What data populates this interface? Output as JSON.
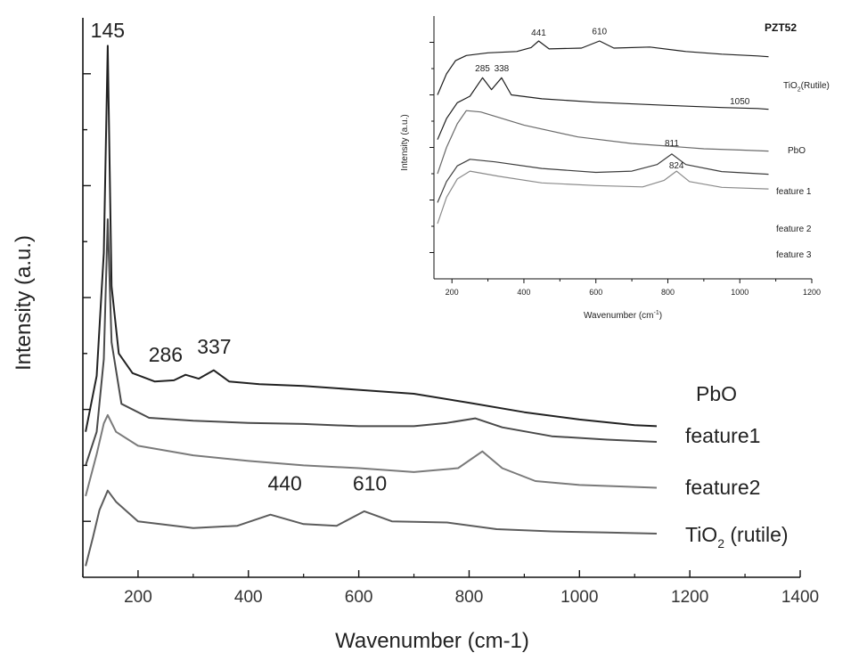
{
  "chart_data": [
    {
      "type": "line",
      "title": "",
      "xlabel": "Wavenumber (cm-1)",
      "ylabel": "Intensity (a.u.)",
      "xlim": [
        100,
        1400
      ],
      "ylim": [
        0,
        10
      ],
      "x_ticks": [
        200,
        400,
        600,
        800,
        1000,
        1200,
        1400
      ],
      "x_tick_labels": [
        "200",
        "400",
        "600",
        "800",
        "1000",
        "1200",
        "1400"
      ],
      "y_tick_labels_shown": false,
      "grid": false,
      "series_labels_placement": "right of curves",
      "series": [
        {
          "name": "PbO",
          "label_main": "PbO",
          "label_sub": "",
          "label_tail": "",
          "color": "#222222",
          "points": [
            [
              105,
              2.6
            ],
            [
              125,
              3.6
            ],
            [
              138,
              5.8
            ],
            [
              145,
              9.5
            ],
            [
              152,
              5.2
            ],
            [
              165,
              4.0
            ],
            [
              190,
              3.65
            ],
            [
              230,
              3.5
            ],
            [
              265,
              3.52
            ],
            [
              286,
              3.62
            ],
            [
              310,
              3.55
            ],
            [
              337,
              3.7
            ],
            [
              365,
              3.5
            ],
            [
              420,
              3.45
            ],
            [
              500,
              3.42
            ],
            [
              600,
              3.35
            ],
            [
              700,
              3.28
            ],
            [
              800,
              3.12
            ],
            [
              900,
              2.95
            ],
            [
              1000,
              2.82
            ],
            [
              1100,
              2.72
            ],
            [
              1140,
              2.7
            ]
          ]
        },
        {
          "name": "feature1",
          "label_main": "feature1",
          "label_sub": "",
          "label_tail": "",
          "color": "#4a4a4a",
          "points": [
            [
              105,
              2.0
            ],
            [
              125,
              2.6
            ],
            [
              138,
              3.9
            ],
            [
              145,
              6.4
            ],
            [
              152,
              4.2
            ],
            [
              170,
              3.1
            ],
            [
              220,
              2.85
            ],
            [
              300,
              2.8
            ],
            [
              400,
              2.76
            ],
            [
              500,
              2.74
            ],
            [
              600,
              2.7
            ],
            [
              700,
              2.7
            ],
            [
              760,
              2.76
            ],
            [
              811,
              2.84
            ],
            [
              860,
              2.68
            ],
            [
              950,
              2.52
            ],
            [
              1050,
              2.46
            ],
            [
              1140,
              2.42
            ]
          ]
        },
        {
          "name": "feature2",
          "label_main": "feature2",
          "label_sub": "",
          "label_tail": "",
          "color": "#7a7a7a",
          "points": [
            [
              105,
              1.45
            ],
            [
              125,
              2.2
            ],
            [
              138,
              2.75
            ],
            [
              145,
              2.9
            ],
            [
              160,
              2.6
            ],
            [
              200,
              2.35
            ],
            [
              300,
              2.18
            ],
            [
              400,
              2.08
            ],
            [
              500,
              2.0
            ],
            [
              600,
              1.95
            ],
            [
              700,
              1.88
            ],
            [
              780,
              1.95
            ],
            [
              824,
              2.25
            ],
            [
              860,
              1.95
            ],
            [
              920,
              1.72
            ],
            [
              1000,
              1.65
            ],
            [
              1140,
              1.6
            ]
          ]
        },
        {
          "name": "TiO2 (rutile)",
          "label_main": "TiO",
          "label_sub": "2",
          "label_tail": " (rutile)",
          "color": "#5c5c5c",
          "points": [
            [
              105,
              0.2
            ],
            [
              118,
              0.7
            ],
            [
              130,
              1.2
            ],
            [
              145,
              1.55
            ],
            [
              160,
              1.35
            ],
            [
              200,
              1.0
            ],
            [
              300,
              0.88
            ],
            [
              380,
              0.92
            ],
            [
              440,
              1.12
            ],
            [
              500,
              0.95
            ],
            [
              560,
              0.92
            ],
            [
              610,
              1.18
            ],
            [
              660,
              1.0
            ],
            [
              760,
              0.98
            ],
            [
              850,
              0.86
            ],
            [
              950,
              0.82
            ],
            [
              1050,
              0.8
            ],
            [
              1140,
              0.78
            ]
          ]
        }
      ],
      "peak_labels": [
        {
          "text": "145",
          "x": 145,
          "y": 9.65
        },
        {
          "text": "286",
          "x": 250,
          "y": 3.85
        },
        {
          "text": "337",
          "x": 338,
          "y": 4.0
        },
        {
          "text": "440",
          "x": 466,
          "y": 1.55
        },
        {
          "text": "610",
          "x": 620,
          "y": 1.55
        }
      ]
    },
    {
      "type": "line",
      "title": "PZT52",
      "xlabel_main": "Wavenumber (cm",
      "xlabel_sup": "-1",
      "xlabel_tail": ")",
      "ylabel": "Intensity (a.u.)",
      "xlim": [
        150,
        1200
      ],
      "ylim": [
        0,
        10
      ],
      "x_ticks": [
        200,
        400,
        600,
        800,
        1000,
        1200
      ],
      "x_tick_labels": [
        "200",
        "400",
        "600",
        "800",
        "1000",
        "1200"
      ],
      "y_tick_labels_shown": false,
      "grid": false,
      "series": [
        {
          "name": "TiO2 (Rutile)",
          "label_main": "TiO",
          "label_sub": "2",
          "label_tail": "(Rutile)",
          "color": "#1e1e1e",
          "points": [
            [
              160,
              7.0
            ],
            [
              185,
              7.8
            ],
            [
              210,
              8.3
            ],
            [
              240,
              8.5
            ],
            [
              300,
              8.6
            ],
            [
              380,
              8.65
            ],
            [
              420,
              8.8
            ],
            [
              441,
              9.05
            ],
            [
              470,
              8.75
            ],
            [
              560,
              8.78
            ],
            [
              610,
              9.05
            ],
            [
              650,
              8.78
            ],
            [
              750,
              8.82
            ],
            [
              850,
              8.65
            ],
            [
              950,
              8.55
            ],
            [
              1050,
              8.48
            ],
            [
              1080,
              8.45
            ]
          ]
        },
        {
          "name": "PbO",
          "label_main": "PbO",
          "label_sub": "",
          "label_tail": "",
          "color": "#1e1e1e",
          "points": [
            [
              160,
              5.3
            ],
            [
              185,
              6.1
            ],
            [
              215,
              6.7
            ],
            [
              250,
              6.95
            ],
            [
              285,
              7.65
            ],
            [
              310,
              7.2
            ],
            [
              338,
              7.65
            ],
            [
              365,
              7.0
            ],
            [
              450,
              6.85
            ],
            [
              600,
              6.72
            ],
            [
              800,
              6.6
            ],
            [
              950,
              6.52
            ],
            [
              1050,
              6.48
            ],
            [
              1080,
              6.45
            ]
          ]
        },
        {
          "name": "feature 1",
          "label_main": "feature 1",
          "label_sub": "",
          "label_tail": "",
          "color": "#6a6a6a",
          "points": [
            [
              160,
              4.0
            ],
            [
              185,
              5.0
            ],
            [
              215,
              5.9
            ],
            [
              240,
              6.4
            ],
            [
              280,
              6.35
            ],
            [
              400,
              5.85
            ],
            [
              550,
              5.4
            ],
            [
              700,
              5.15
            ],
            [
              800,
              5.05
            ],
            [
              900,
              4.95
            ],
            [
              1000,
              4.9
            ],
            [
              1080,
              4.86
            ]
          ]
        },
        {
          "name": "feature 2",
          "label_main": "feature 2",
          "label_sub": "",
          "label_tail": "",
          "color": "#3c3c3c",
          "points": [
            [
              160,
              2.9
            ],
            [
              185,
              3.7
            ],
            [
              215,
              4.3
            ],
            [
              250,
              4.55
            ],
            [
              320,
              4.45
            ],
            [
              450,
              4.2
            ],
            [
              600,
              4.05
            ],
            [
              700,
              4.1
            ],
            [
              770,
              4.35
            ],
            [
              811,
              4.75
            ],
            [
              850,
              4.35
            ],
            [
              950,
              4.08
            ],
            [
              1080,
              3.98
            ]
          ]
        },
        {
          "name": "feature 3",
          "label_main": "feature 3",
          "label_sub": "",
          "label_tail": "",
          "color": "#8a8a8a",
          "points": [
            [
              160,
              2.1
            ],
            [
              185,
              3.1
            ],
            [
              215,
              3.8
            ],
            [
              250,
              4.1
            ],
            [
              330,
              3.9
            ],
            [
              450,
              3.65
            ],
            [
              600,
              3.55
            ],
            [
              730,
              3.5
            ],
            [
              790,
              3.75
            ],
            [
              824,
              4.1
            ],
            [
              860,
              3.7
            ],
            [
              950,
              3.48
            ],
            [
              1080,
              3.42
            ]
          ]
        }
      ],
      "peak_labels": [
        {
          "text": "441",
          "x": 441,
          "y": 9.25
        },
        {
          "text": "610",
          "x": 610,
          "y": 9.3
        },
        {
          "text": "285",
          "x": 285,
          "y": 7.9
        },
        {
          "text": "338",
          "x": 338,
          "y": 7.9
        },
        {
          "text": "1050",
          "x": 1000,
          "y": 6.65
        },
        {
          "text": "811",
          "x": 811,
          "y": 5.05
        },
        {
          "text": "824",
          "x": 824,
          "y": 4.2
        }
      ]
    }
  ]
}
